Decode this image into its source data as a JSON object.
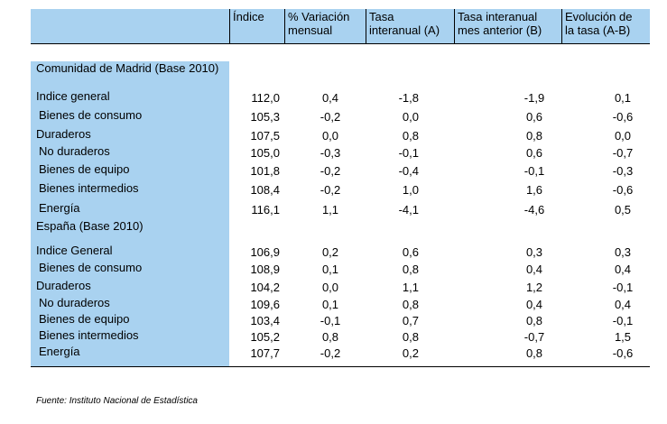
{
  "headers": [
    "Índice",
    "% Variación\nmensual",
    "Tasa\ninteranual (A)",
    "Tasa interanual\nmes anterior (B)",
    "Evolución de\nla tasa (A-B)"
  ],
  "sections": [
    {
      "title": "Comunidad de Madrid (Base 2010)",
      "rows": [
        {
          "label": "Indice general",
          "values": [
            "112,0",
            "0,4",
            "-1,8",
            "-1,9",
            "0,1"
          ]
        },
        {
          "label": "Bienes de consumo",
          "values": [
            "105,3",
            "-0,2",
            "0,0",
            "0,6",
            "-0,6"
          ]
        },
        {
          "label": "Duraderos",
          "values": [
            "107,5",
            "0,0",
            "0,8",
            "0,8",
            "0,0"
          ]
        },
        {
          "label": "No duraderos",
          "values": [
            "105,0",
            "-0,3",
            "-0,1",
            "0,6",
            "-0,7"
          ]
        },
        {
          "label": "Bienes de equipo",
          "values": [
            "101,8",
            "-0,2",
            "-0,4",
            "-0,1",
            "-0,3"
          ]
        },
        {
          "label": "Bienes intermedios",
          "values": [
            "108,4",
            "-0,2",
            "1,0",
            "1,6",
            "-0,6"
          ]
        },
        {
          "label": "Energía",
          "values": [
            "116,1",
            "1,1",
            "-4,1",
            "-4,6",
            "0,5"
          ]
        }
      ]
    },
    {
      "title": "España (Base 2010)",
      "rows": [
        {
          "label": "Indice General",
          "values": [
            "106,9",
            "0,2",
            "0,6",
            "0,3",
            "0,3"
          ]
        },
        {
          "label": "Bienes de consumo",
          "values": [
            "108,9",
            "0,1",
            "0,8",
            "0,4",
            "0,4"
          ]
        },
        {
          "label": "Duraderos",
          "values": [
            "104,2",
            "0,0",
            "1,1",
            "1,2",
            "-0,1"
          ]
        },
        {
          "label": "No duraderos",
          "values": [
            "109,6",
            "0,1",
            "0,8",
            "0,4",
            "0,4"
          ]
        },
        {
          "label": "Bienes de equipo",
          "values": [
            "103,4",
            "-0,1",
            "0,7",
            "0,8",
            "-0,1"
          ]
        },
        {
          "label": "Bienes intermedios",
          "values": [
            "105,2",
            "0,8",
            "0,8",
            "-0,7",
            "1,5"
          ]
        },
        {
          "label": "Energía",
          "values": [
            "107,7",
            "-0,2",
            "0,2",
            "0,8",
            "-0,6"
          ]
        }
      ]
    }
  ],
  "source": "Fuente: Instituto Nacional de Estadística",
  "colors": {
    "header_fill": "#a9d2f0",
    "rule": "#000000"
  }
}
